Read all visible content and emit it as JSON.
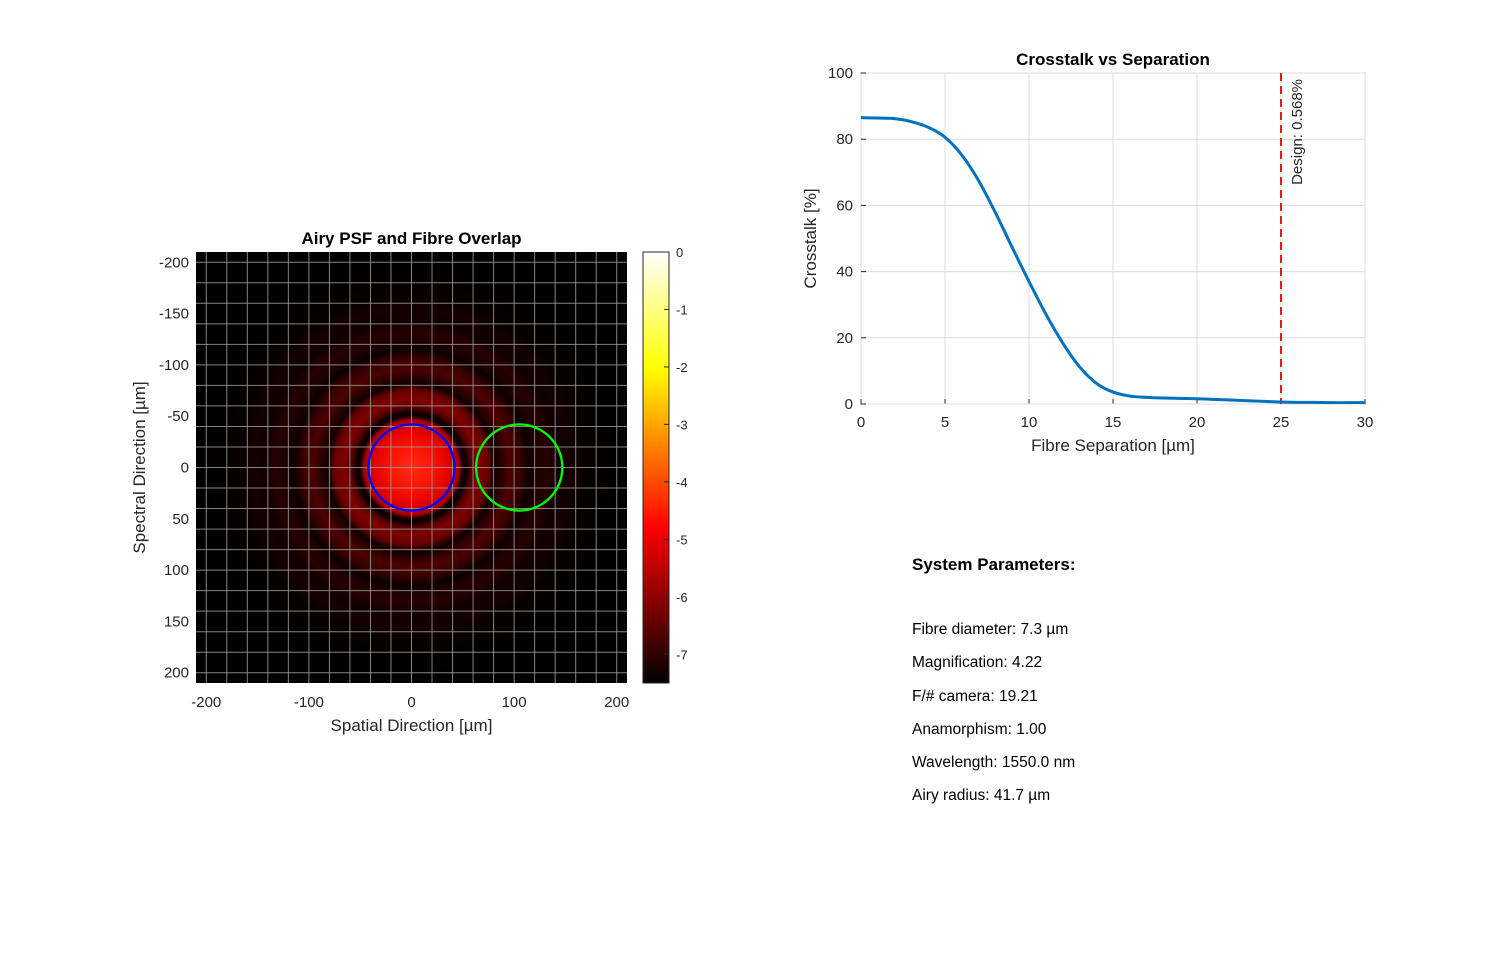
{
  "chart_data": [
    {
      "type": "heatmap",
      "title": "Airy PSF and Fibre Overlap",
      "xlabel": "Spatial Direction [µm]",
      "ylabel": "Spectral Direction [µm]",
      "xlim": [
        -210,
        210
      ],
      "ylim": [
        -210,
        210
      ],
      "y_reversed": true,
      "xticks": [
        -200,
        -100,
        0,
        100,
        200
      ],
      "yticks": [
        -200,
        -150,
        -100,
        -50,
        0,
        50,
        100,
        150,
        200
      ],
      "grid": true,
      "colormap": "hot",
      "colorbar": {
        "ticks": [
          0,
          -1,
          -2,
          -3,
          -4,
          -5,
          -6,
          -7
        ],
        "lim": [
          -7.5,
          0
        ]
      },
      "psf": {
        "center": [
          0,
          0
        ],
        "airy_radius": 41.7
      },
      "fibres": [
        {
          "name": "centre fibre",
          "center": [
            0,
            0
          ],
          "radius": 42,
          "color": "#0000ff"
        },
        {
          "name": "adjacent fibre",
          "center": [
            105,
            0
          ],
          "radius": 42,
          "color": "#00ff00"
        }
      ]
    },
    {
      "type": "line",
      "title": "Crosstalk vs Separation",
      "xlabel": "Fibre Separation [µm]",
      "ylabel": "Crosstalk [%]",
      "xlim": [
        0,
        30
      ],
      "ylim": [
        0,
        100
      ],
      "xticks": [
        0,
        5,
        10,
        15,
        20,
        25,
        30
      ],
      "yticks": [
        0,
        20,
        40,
        60,
        80,
        100
      ],
      "grid": true,
      "series": [
        {
          "color": "#0072bd",
          "x": [
            0,
            1,
            2,
            3,
            4,
            5,
            6,
            7,
            8,
            9,
            10,
            11,
            12,
            13,
            14,
            15,
            16,
            17,
            18,
            19,
            20,
            21,
            22,
            23,
            24,
            25,
            26,
            27,
            28,
            29,
            30
          ],
          "y": [
            86.5,
            86.4,
            86.2,
            85.3,
            83.6,
            80.6,
            75.2,
            67.5,
            57.8,
            47.3,
            37.0,
            27.2,
            18.5,
            11.3,
            6.3,
            3.6,
            2.4,
            2.0,
            1.8,
            1.7,
            1.6,
            1.4,
            1.2,
            1.0,
            0.8,
            0.6,
            0.5,
            0.5,
            0.4,
            0.4,
            0.4
          ]
        }
      ],
      "annotation": {
        "x": 25,
        "text": "Design: 0.568%",
        "color": "#e31a1c",
        "style": "dashed"
      }
    }
  ],
  "params": {
    "title": "System Parameters:",
    "lines": [
      "Fibre diameter: 7.3 µm",
      "Magnification: 4.22",
      "F/# camera: 19.21",
      "Anamorphism: 1.00",
      "Wavelength: 1550.0 nm",
      "Airy radius: 41.7 µm"
    ]
  }
}
